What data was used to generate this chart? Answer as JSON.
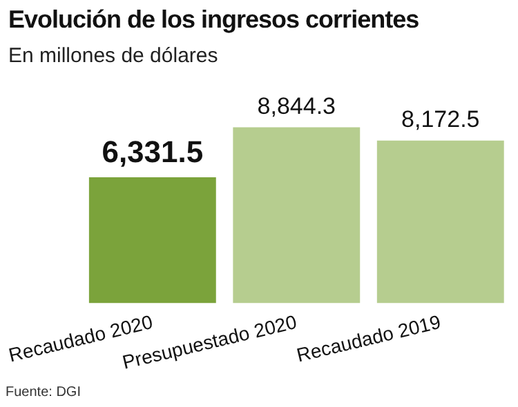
{
  "chart_data": {
    "type": "bar",
    "title": "Evolución de los ingresos corrientes",
    "subtitle": "En millones de dólares",
    "categories": [
      "Recaudado 2020",
      "Presupuestado 2020",
      "Recaudado 2019"
    ],
    "values": [
      6331.5,
      8844.3,
      8172.5
    ],
    "colors": [
      "#7ba33b",
      "#b6cd8f",
      "#b6cd8f"
    ],
    "value_labels": [
      "6,331.5",
      "8,844.3",
      "8,172.5"
    ],
    "annotations": [
      "Fuente: DGI"
    ],
    "grid": false,
    "legend": false
  }
}
